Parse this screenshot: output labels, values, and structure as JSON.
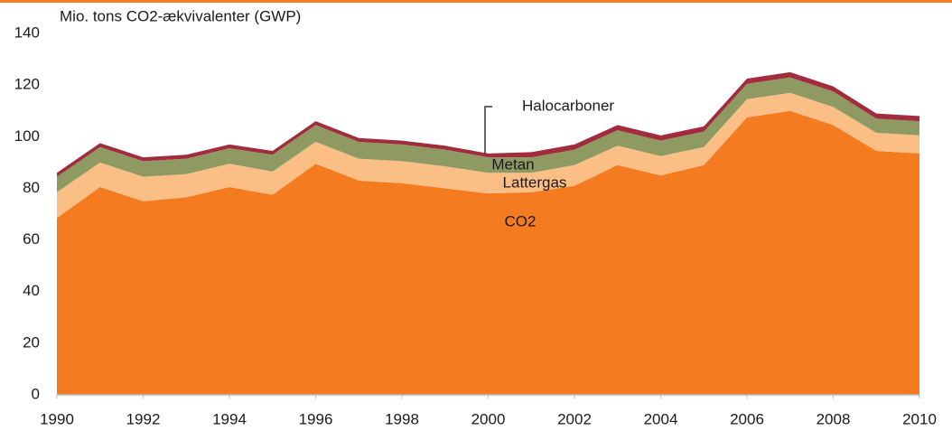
{
  "chart_data": {
    "type": "stacked_area",
    "y_label": "Mio. tons CO2-ækvivalenter (GWP)",
    "x": [
      1990,
      1991,
      1992,
      1993,
      1994,
      1995,
      1996,
      1997,
      1998,
      1999,
      2000,
      2001,
      2002,
      2003,
      2004,
      2005,
      2006,
      2007,
      2008,
      2009,
      2010
    ],
    "series": [
      {
        "name": "CO2",
        "color": "#f47b20",
        "values": [
          68.5,
          80.5,
          75,
          76.5,
          80.5,
          77.5,
          89.5,
          83,
          82,
          80,
          78,
          78.5,
          81,
          89,
          85,
          89,
          107.5,
          110,
          104.5,
          94.5,
          93.5
        ]
      },
      {
        "name": "Lattergas",
        "color": "#fbbf85",
        "values": [
          10,
          9.5,
          9.5,
          9,
          9,
          9,
          8.5,
          8.5,
          8.5,
          8.5,
          8,
          7.5,
          8,
          7.5,
          7.5,
          7,
          7,
          7,
          7,
          7,
          7
        ]
      },
      {
        "name": "Metan",
        "color": "#8e9a62",
        "values": [
          6,
          6,
          6,
          6,
          6,
          6.5,
          6.5,
          6.5,
          6.5,
          6.5,
          6,
          6,
          6,
          6,
          6,
          6,
          6,
          6,
          6,
          5.5,
          5.5
        ]
      },
      {
        "name": "Halocarboner",
        "color": "#a02c3d",
        "values": [
          1.5,
          1.5,
          1.5,
          1.5,
          1.5,
          1.5,
          1.5,
          1.5,
          1.5,
          1.5,
          1.5,
          2,
          2,
          2,
          2,
          2,
          2,
          2,
          2,
          2,
          2
        ]
      }
    ],
    "xlim": [
      1990,
      2010
    ],
    "xticks": [
      1990,
      1992,
      1994,
      1996,
      1998,
      2000,
      2002,
      2004,
      2006,
      2008,
      2010
    ],
    "ylim": [
      0,
      140
    ],
    "yticks": [
      0,
      20,
      40,
      60,
      80,
      100,
      120,
      140
    ]
  }
}
